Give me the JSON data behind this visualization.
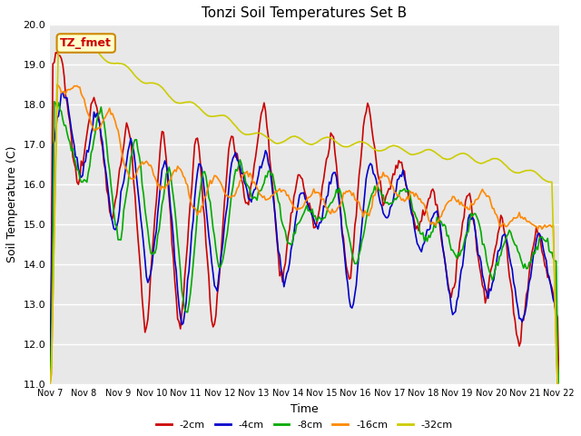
{
  "title": "Tonzi Soil Temperatures Set B",
  "xlabel": "Time",
  "ylabel": "Soil Temperature (C)",
  "ylim": [
    11.0,
    20.0
  ],
  "yticks": [
    11.0,
    12.0,
    13.0,
    14.0,
    15.0,
    16.0,
    17.0,
    18.0,
    19.0,
    20.0
  ],
  "x_labels": [
    "Nov 7",
    "Nov 8",
    "Nov 9",
    "Nov 10",
    "Nov 11",
    "Nov 12",
    "Nov 13",
    "Nov 14",
    "Nov 15",
    "Nov 16",
    "Nov 17",
    "Nov 18",
    "Nov 19",
    "Nov 20",
    "Nov 21",
    "Nov 22"
  ],
  "annotation_label": "TZ_fmet",
  "annotation_bg": "#ffffcc",
  "annotation_border": "#cc8800",
  "annotation_text_color": "#cc0000",
  "series_colors": [
    "#cc0000",
    "#0000cc",
    "#00aa00",
    "#ff8800",
    "#cccc00"
  ],
  "series_labels": [
    "-2cm",
    "-4cm",
    "-8cm",
    "-16cm",
    "-32cm"
  ],
  "plot_bg_color": "#e8e8e8",
  "linewidth": 1.2
}
